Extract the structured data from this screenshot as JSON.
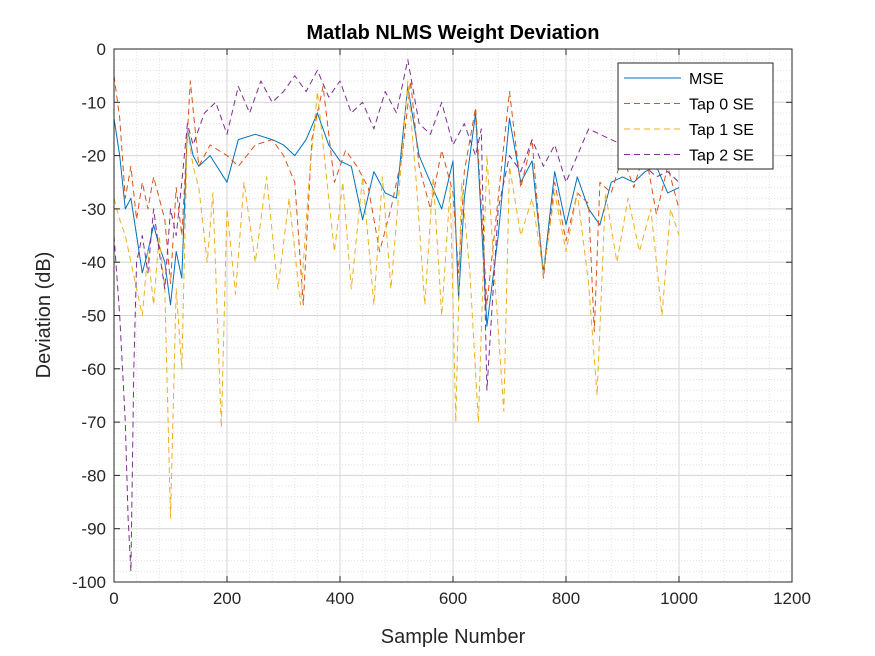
{
  "chart_data": {
    "type": "line",
    "title": "Matlab NLMS Weight Deviation",
    "xlabel": "Sample Number",
    "ylabel": "Deviation (dB)",
    "xlim": [
      0,
      1200
    ],
    "ylim": [
      -100,
      0
    ],
    "xticks": [
      0,
      200,
      400,
      600,
      800,
      1000,
      1200
    ],
    "yticks": [
      0,
      -10,
      -20,
      -30,
      -40,
      -50,
      -60,
      -70,
      -80,
      -90,
      -100
    ],
    "grid": "on",
    "minor_grid": "on",
    "legend_position": "top-right",
    "series": [
      {
        "name": "MSE",
        "color": "#0072BD",
        "style": "solid",
        "x": [
          0,
          10,
          20,
          30,
          40,
          50,
          60,
          70,
          80,
          90,
          100,
          110,
          120,
          130,
          140,
          150,
          170,
          200,
          220,
          250,
          280,
          300,
          320,
          340,
          360,
          380,
          400,
          420,
          440,
          460,
          480,
          500,
          520,
          540,
          560,
          580,
          600,
          610,
          620,
          640,
          660,
          680,
          700,
          720,
          740,
          760,
          780,
          800,
          820,
          840,
          860,
          880,
          900,
          920,
          940,
          960,
          980,
          1000
        ],
        "y": [
          -13,
          -20,
          -30,
          -28,
          -35,
          -42,
          -38,
          -33,
          -37,
          -40,
          -48,
          -38,
          -43,
          -15,
          -20,
          -22,
          -20,
          -25,
          -17,
          -16,
          -17,
          -18,
          -20,
          -17,
          -12,
          -18,
          -21,
          -22,
          -32,
          -23,
          -27,
          -28,
          -7,
          -20,
          -25,
          -30,
          -21,
          -47,
          -28,
          -12,
          -52,
          -35,
          -13,
          -25,
          -21,
          -42,
          -23,
          -33,
          -24,
          -30,
          -33,
          -25,
          -24,
          -25,
          -23,
          -22,
          -27,
          -26
        ]
      },
      {
        "name": "Tap 0 SE",
        "color": "#D95319",
        "style": "dashed",
        "x": [
          0,
          10,
          20,
          30,
          40,
          50,
          60,
          70,
          80,
          90,
          100,
          110,
          120,
          135,
          150,
          170,
          200,
          220,
          250,
          280,
          300,
          320,
          335,
          350,
          370,
          390,
          410,
          430,
          450,
          470,
          490,
          510,
          525,
          540,
          560,
          580,
          600,
          610,
          620,
          640,
          660,
          680,
          700,
          720,
          740,
          760,
          780,
          800,
          820,
          840,
          850,
          860,
          880,
          900,
          920,
          940,
          960,
          980,
          1000
        ],
        "y": [
          -5,
          -13,
          -28,
          -22,
          -32,
          -25,
          -30,
          -24,
          -28,
          -32,
          -44,
          -26,
          -35,
          -6,
          -22,
          -18,
          -20,
          -22,
          -18,
          -17,
          -20,
          -25,
          -48,
          -17,
          -7,
          -25,
          -19,
          -22,
          -26,
          -38,
          -30,
          -20,
          -6,
          -22,
          -30,
          -19,
          -27,
          -42,
          -23,
          -11,
          -48,
          -28,
          -8,
          -26,
          -17,
          -43,
          -25,
          -36,
          -27,
          -29,
          -53,
          -25,
          -27,
          -20,
          -26,
          -19,
          -31,
          -22,
          -30
        ]
      },
      {
        "name": "Tap 1 SE",
        "color": "#EDB120",
        "style": "dashed",
        "x": [
          0,
          10,
          20,
          30,
          40,
          50,
          60,
          70,
          80,
          90,
          100,
          110,
          120,
          130,
          140,
          150,
          165,
          175,
          190,
          200,
          215,
          230,
          250,
          270,
          290,
          310,
          330,
          345,
          360,
          375,
          390,
          405,
          420,
          440,
          460,
          475,
          490,
          505,
          520,
          535,
          550,
          565,
          580,
          595,
          605,
          615,
          630,
          645,
          660,
          675,
          690,
          700,
          720,
          740,
          760,
          780,
          800,
          820,
          840,
          855,
          870,
          890,
          910,
          930,
          950,
          970,
          985,
          1000
        ],
        "y": [
          -28,
          -32,
          -35,
          -40,
          -45,
          -50,
          -38,
          -48,
          -35,
          -45,
          -88,
          -45,
          -60,
          -15,
          -22,
          -26,
          -40,
          -27,
          -71,
          -30,
          -46,
          -25,
          -40,
          -24,
          -45,
          -28,
          -48,
          -25,
          -8,
          -23,
          -38,
          -25,
          -45,
          -24,
          -48,
          -24,
          -45,
          -26,
          -6,
          -25,
          -48,
          -24,
          -50,
          -26,
          -70,
          -25,
          -42,
          -70,
          -20,
          -45,
          -68,
          -22,
          -35,
          -28,
          -42,
          -27,
          -38,
          -27,
          -44,
          -65,
          -27,
          -40,
          -28,
          -38,
          -30,
          -50,
          -30,
          -35
        ]
      },
      {
        "name": "Tap 2 SE",
        "color": "#7E2F8E",
        "style": "dashed",
        "x": [
          0,
          10,
          20,
          25,
          30,
          35,
          40,
          50,
          60,
          70,
          80,
          90,
          100,
          110,
          120,
          130,
          140,
          160,
          180,
          200,
          220,
          240,
          260,
          280,
          300,
          320,
          340,
          360,
          380,
          400,
          420,
          440,
          460,
          480,
          500,
          520,
          540,
          560,
          580,
          600,
          620,
          640,
          650,
          660,
          680,
          700,
          720,
          740,
          760,
          780,
          800,
          820,
          840,
          860,
          880,
          900,
          920,
          940,
          960,
          980,
          1000
        ],
        "y": [
          -35,
          -50,
          -70,
          -88,
          -98,
          -60,
          -40,
          -35,
          -42,
          -30,
          -38,
          -45,
          -30,
          -35,
          -25,
          -14,
          -18,
          -12,
          -10,
          -16,
          -7,
          -12,
          -6,
          -10,
          -8,
          -5,
          -8,
          -4,
          -9,
          -6,
          -12,
          -10,
          -15,
          -8,
          -12,
          -2,
          -14,
          -16,
          -10,
          -18,
          -14,
          -20,
          -15,
          -64,
          -30,
          -20,
          -23,
          -17,
          -22,
          -18,
          -25,
          -20,
          -15,
          -16,
          -17,
          -18,
          -20,
          -22,
          -24,
          -23,
          -25
        ]
      }
    ]
  }
}
